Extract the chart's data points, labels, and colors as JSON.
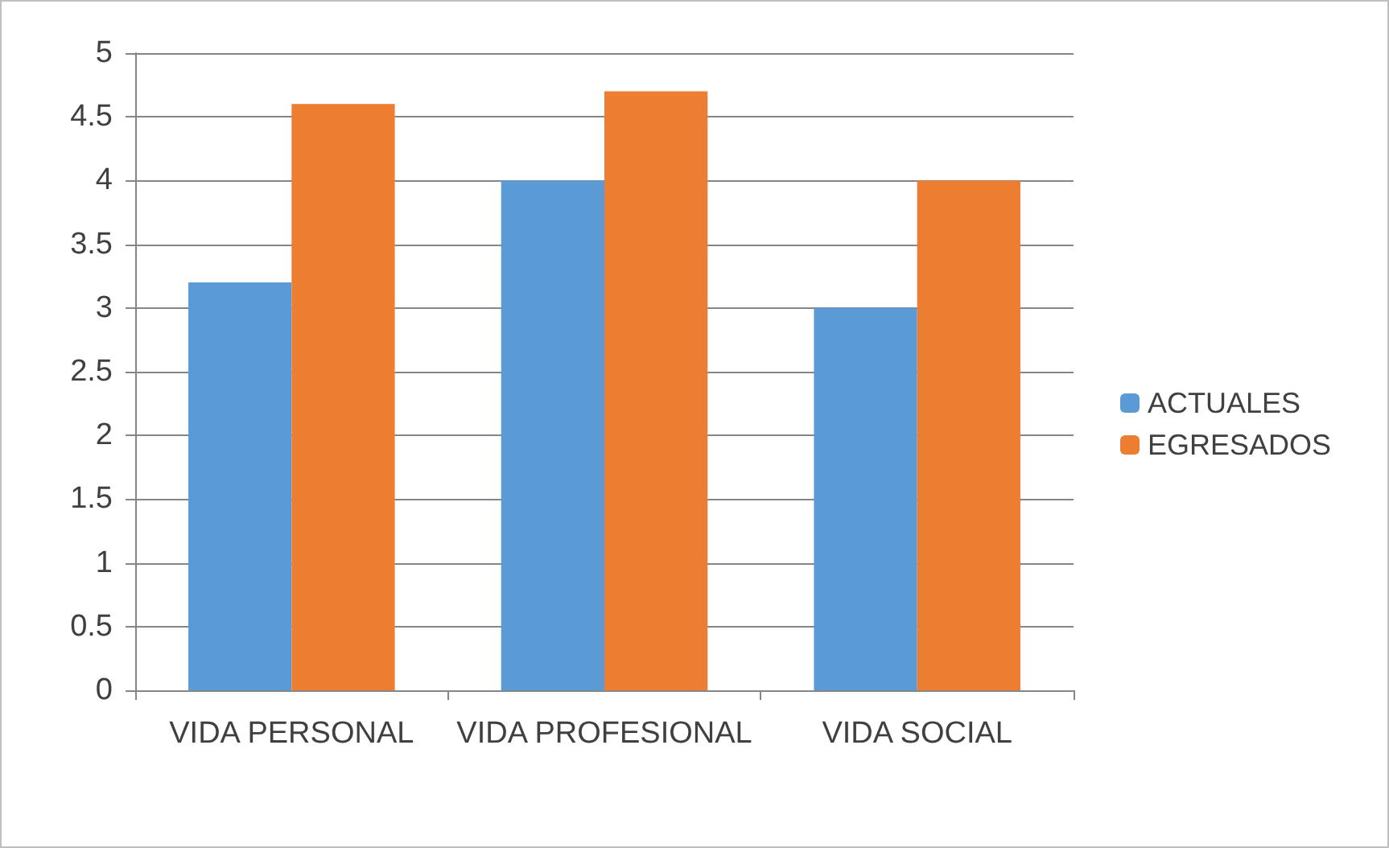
{
  "chart_data": {
    "type": "bar",
    "categories": [
      "VIDA PERSONAL",
      "VIDA PROFESIONAL",
      "VIDA SOCIAL"
    ],
    "series": [
      {
        "name": "ACTUALES",
        "color": "#5b9bd5",
        "values": [
          3.2,
          4,
          3
        ]
      },
      {
        "name": "EGRESADOS",
        "color": "#ed7d31",
        "values": [
          4.6,
          4.7,
          4
        ]
      }
    ],
    "ylim": [
      0,
      5
    ],
    "yticks": [
      0,
      0.5,
      1,
      1.5,
      2,
      2.5,
      3,
      3.5,
      4,
      4.5,
      5
    ],
    "grid": "y",
    "legend": "right"
  }
}
